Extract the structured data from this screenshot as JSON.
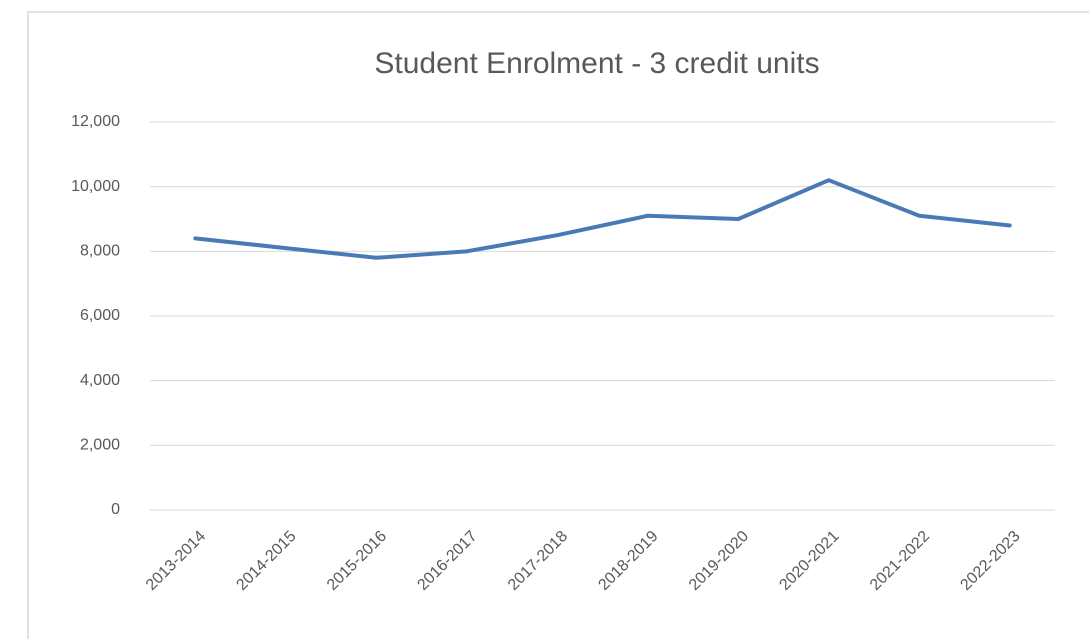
{
  "chart_data": {
    "type": "line",
    "title": "Student Enrolment - 3 credit units",
    "categories": [
      "2013-2014",
      "2014-2015",
      "2015-2016",
      "2016-2017",
      "2017-2018",
      "2018-2019",
      "2019-2020",
      "2020-2021",
      "2021-2022",
      "2022-2023"
    ],
    "series": [
      {
        "name": "3 credit units",
        "color": "#4a7ab5",
        "values": [
          8400,
          8100,
          7800,
          8000,
          8500,
          9100,
          9000,
          10200,
          9100,
          8800
        ]
      }
    ],
    "ylim": [
      0,
      12000
    ],
    "yticks": [
      0,
      {
        "value": 2000,
        "label": "2,000"
      },
      {
        "value": 4000,
        "label": "4,000"
      },
      {
        "value": 6000,
        "label": "6,000"
      },
      {
        "value": 8000,
        "label": "8,000"
      },
      {
        "value": 10000,
        "label": "10,000"
      },
      {
        "value": 12000,
        "label": "12,000"
      }
    ],
    "grid": true,
    "legend": false
  }
}
